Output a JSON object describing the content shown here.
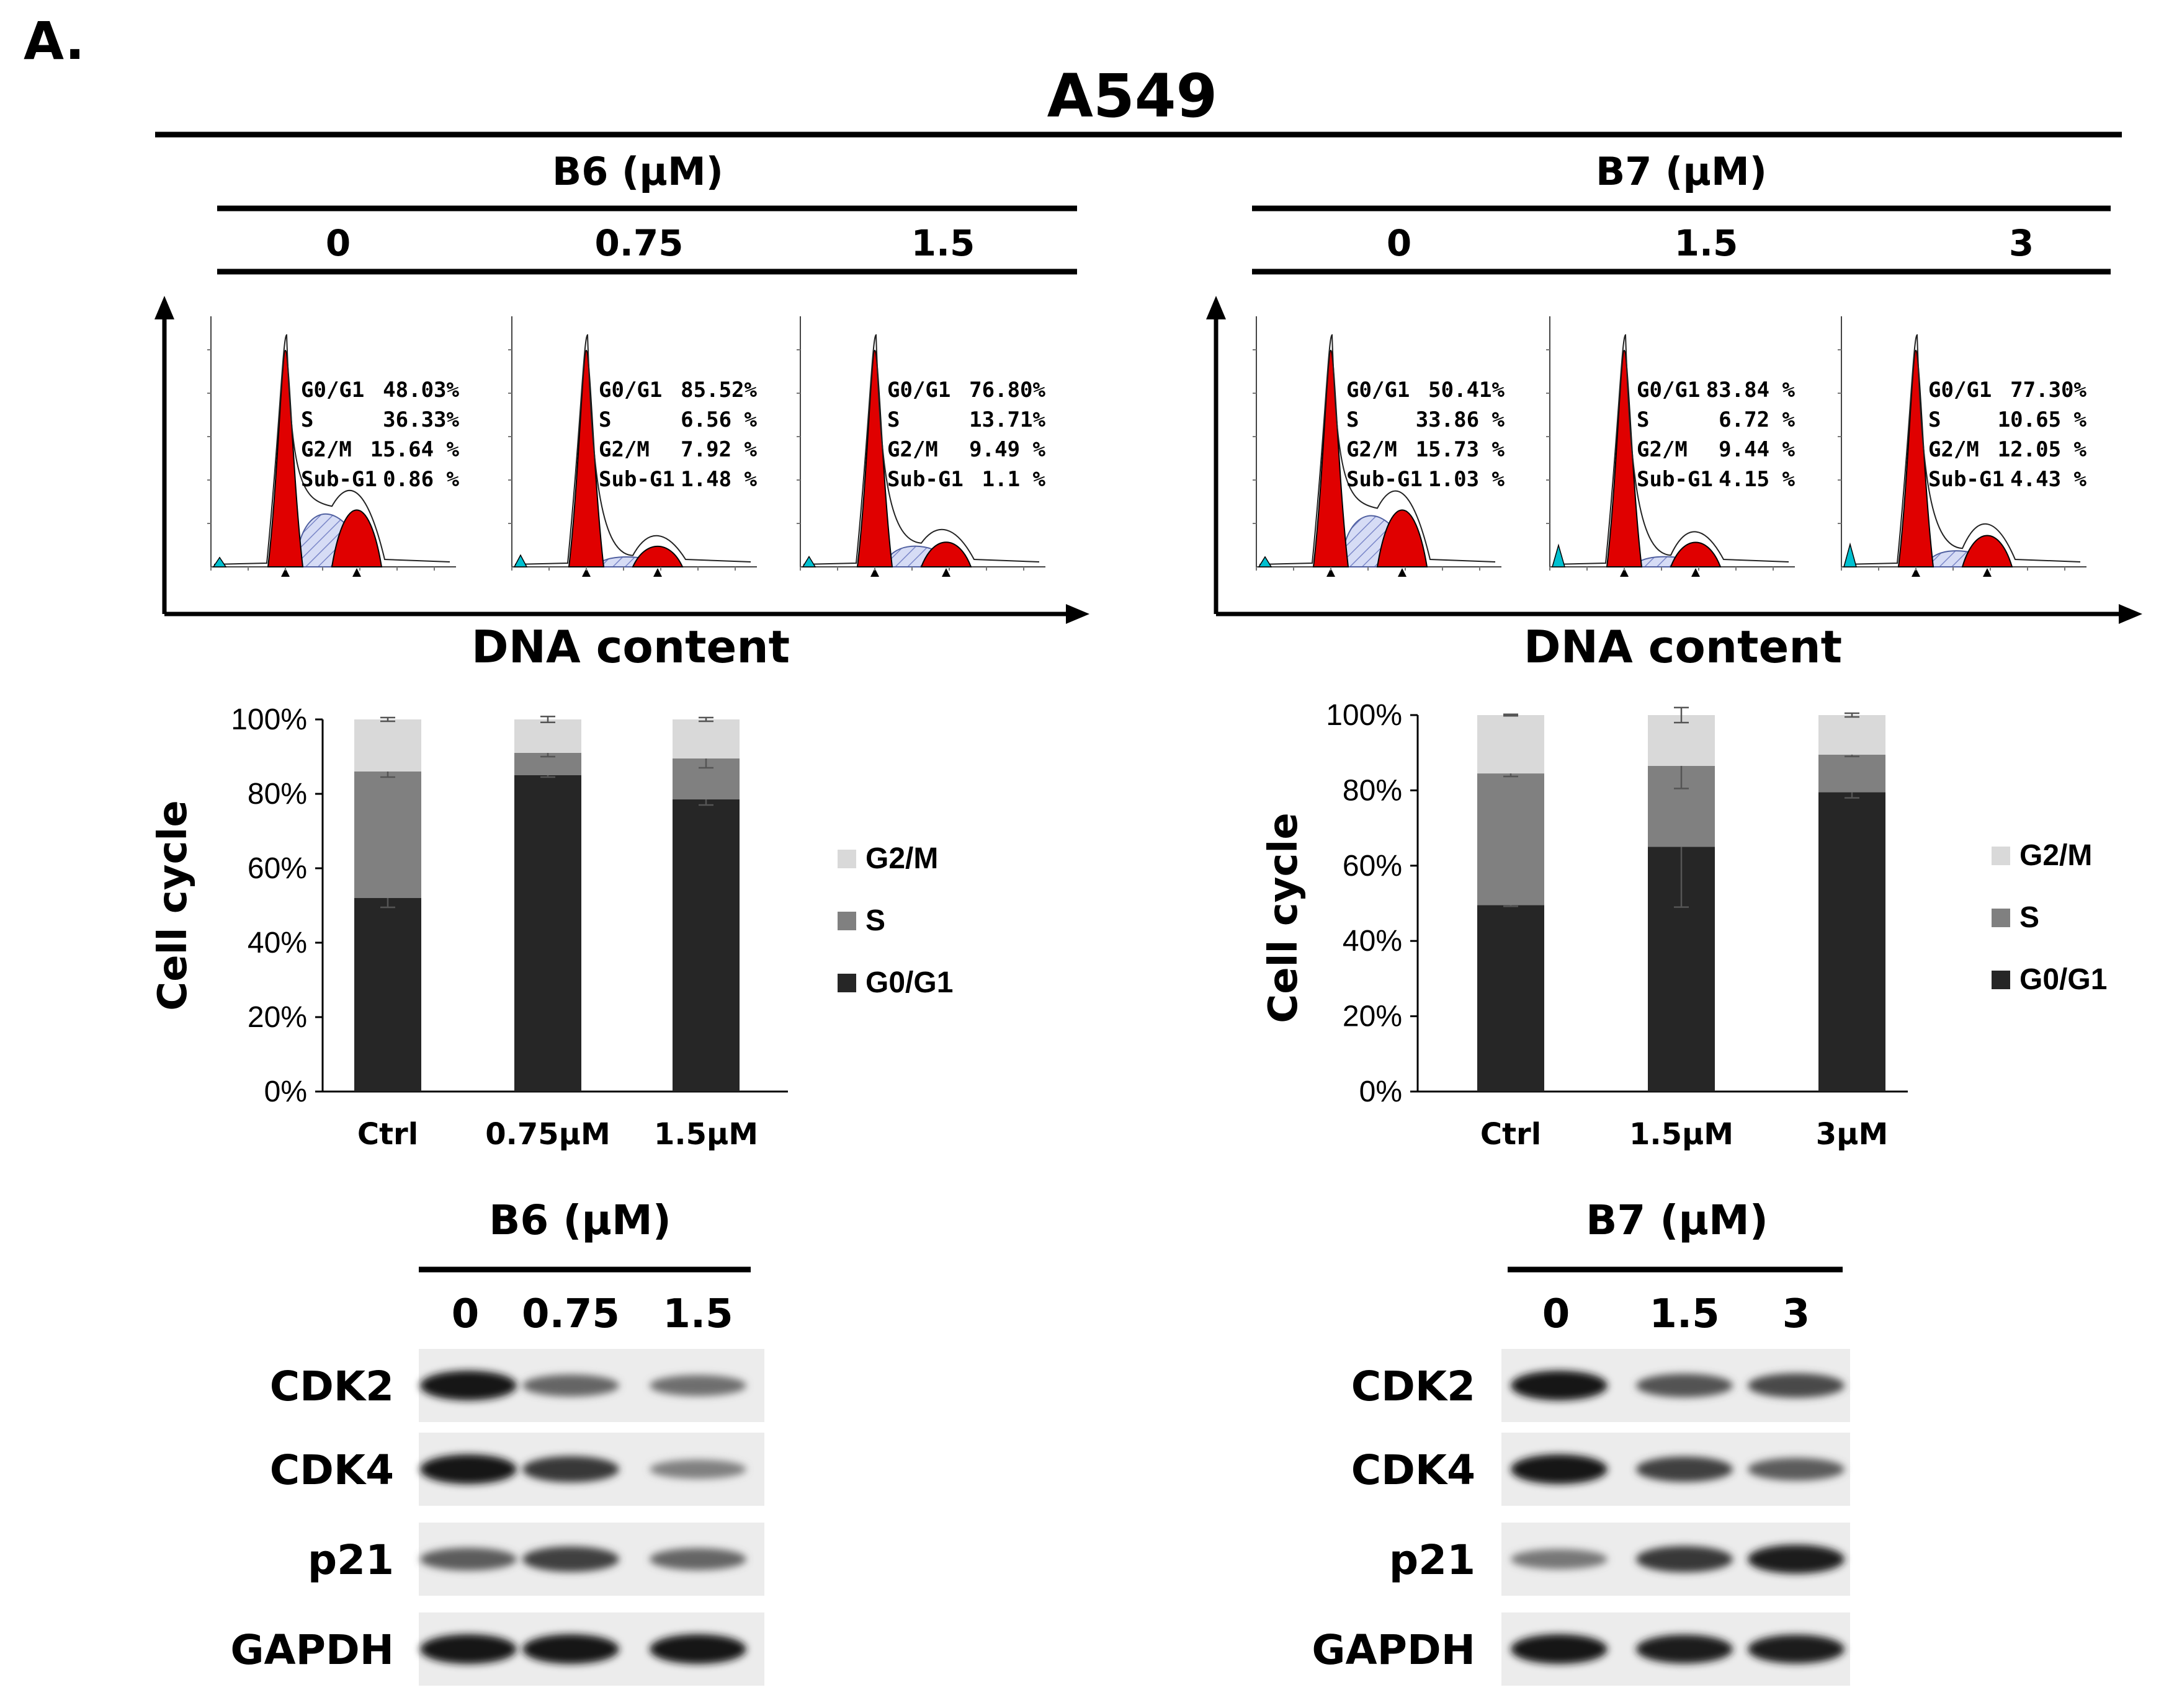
{
  "figure": {
    "panel_label": "A.",
    "cell_line": "A549",
    "x_axis_label": "DNA content",
    "chart_ylabel": "Cell cycle"
  },
  "groups": [
    {
      "compound": "B6 (μM)",
      "doses": [
        "0",
        "0.75",
        "1.5"
      ],
      "histograms": [
        {
          "stats": [
            [
              "G0/G1",
              "48.03%"
            ],
            [
              "S",
              "36.33%"
            ],
            [
              "G2/M",
              "15.64 %"
            ],
            [
              "Sub-G1",
              "0.86 %"
            ]
          ]
        },
        {
          "stats": [
            [
              "G0/G1",
              "85.52%"
            ],
            [
              "S",
              "6.56 %"
            ],
            [
              "G2/M",
              "7.92 %"
            ],
            [
              "Sub-G1",
              "1.48 %"
            ]
          ]
        },
        {
          "stats": [
            [
              "G0/G1",
              "76.80%"
            ],
            [
              "S",
              "13.71%"
            ],
            [
              "G2/M",
              "9.49 %"
            ],
            [
              "Sub-G1",
              "1.1 %"
            ]
          ]
        }
      ],
      "blot": {
        "header": "B6 (μM)",
        "lanes": [
          "0",
          "0.75",
          "1.5"
        ],
        "rows": [
          {
            "label": "CDK2",
            "intensity": [
              1.0,
              0.55,
              0.5
            ]
          },
          {
            "label": "CDK4",
            "intensity": [
              1.0,
              0.8,
              0.4
            ]
          },
          {
            "label": "p21",
            "intensity": [
              0.6,
              0.75,
              0.55
            ]
          },
          {
            "label": "GAPDH",
            "intensity": [
              1.0,
              1.0,
              1.0
            ]
          }
        ]
      }
    },
    {
      "compound": "B7 (μM)",
      "doses": [
        "0",
        "1.5",
        "3"
      ],
      "histograms": [
        {
          "stats": [
            [
              "G0/G1",
              "50.41%"
            ],
            [
              "S",
              "33.86 %"
            ],
            [
              "G2/M",
              "15.73 %"
            ],
            [
              "Sub-G1",
              "1.03 %"
            ]
          ]
        },
        {
          "stats": [
            [
              "G0/G1",
              "83.84 %"
            ],
            [
              "S",
              "6.72 %"
            ],
            [
              "G2/M",
              "9.44 %"
            ],
            [
              "Sub-G1",
              "4.15 %"
            ]
          ]
        },
        {
          "stats": [
            [
              "G0/G1",
              "77.30%"
            ],
            [
              "S",
              "10.65 %"
            ],
            [
              "G2/M",
              "12.05 %"
            ],
            [
              "Sub-G1",
              "4.43 %"
            ]
          ]
        }
      ],
      "blot": {
        "header": "B7 (μM)",
        "lanes": [
          "0",
          "1.5",
          "3"
        ],
        "rows": [
          {
            "label": "CDK2",
            "intensity": [
              1.0,
              0.65,
              0.7
            ]
          },
          {
            "label": "CDK4",
            "intensity": [
              1.0,
              0.75,
              0.6
            ]
          },
          {
            "label": "p21",
            "intensity": [
              0.45,
              0.8,
              0.95
            ]
          },
          {
            "label": "GAPDH",
            "intensity": [
              1.0,
              0.95,
              0.95
            ]
          }
        ]
      }
    }
  ],
  "colors": {
    "g0g1": "#262626",
    "s": "#808080",
    "g2m": "#d9d9d9",
    "peak_fill": "#e00000",
    "s_phase_fill": "#d6dcf5",
    "subg1_fill": "#00c0d0"
  },
  "chart_data": [
    {
      "type": "bar",
      "stacked": true,
      "ylabel": "Cell cycle",
      "categories": [
        "Ctrl",
        "0.75μM",
        "1.5μM"
      ],
      "yticks": [
        "0%",
        "20%",
        "40%",
        "60%",
        "80%",
        "100%"
      ],
      "ylim": [
        0,
        100
      ],
      "series": [
        {
          "name": "G0/G1",
          "values": [
            52,
            85,
            78.5
          ]
        },
        {
          "name": "S",
          "values": [
            34,
            6,
            11
          ]
        },
        {
          "name": "G2/M",
          "values": [
            14,
            9,
            10.5
          ]
        }
      ],
      "error_bars": {
        "G0/G1": [
          2.5,
          0.5,
          1.5
        ],
        "S": [
          1.5,
          1,
          2.5
        ],
        "G2/M": [
          0.5,
          0.8,
          0.5
        ]
      },
      "legend": [
        "G2/M",
        "S",
        "G0/G1"
      ],
      "legend_position": "right"
    },
    {
      "type": "bar",
      "stacked": true,
      "ylabel": "Cell cycle",
      "categories": [
        "Ctrl",
        "1.5μM",
        "3μM"
      ],
      "yticks": [
        "0%",
        "20%",
        "40%",
        "60%",
        "80%",
        "100%"
      ],
      "ylim": [
        0,
        100
      ],
      "series": [
        {
          "name": "G0/G1",
          "values": [
            49.5,
            65,
            79.5
          ]
        },
        {
          "name": "S",
          "values": [
            35,
            21.5,
            10
          ]
        },
        {
          "name": "G2/M",
          "values": [
            15.5,
            13.5,
            10.5
          ]
        }
      ],
      "error_bars": {
        "G0/G1": [
          0.3,
          16,
          1.5
        ],
        "S": [
          0.8,
          6,
          0.5
        ],
        "G2/M": [
          0.2,
          2,
          0.5
        ]
      },
      "legend": [
        "G2/M",
        "S",
        "G0/G1"
      ],
      "legend_position": "right"
    }
  ]
}
